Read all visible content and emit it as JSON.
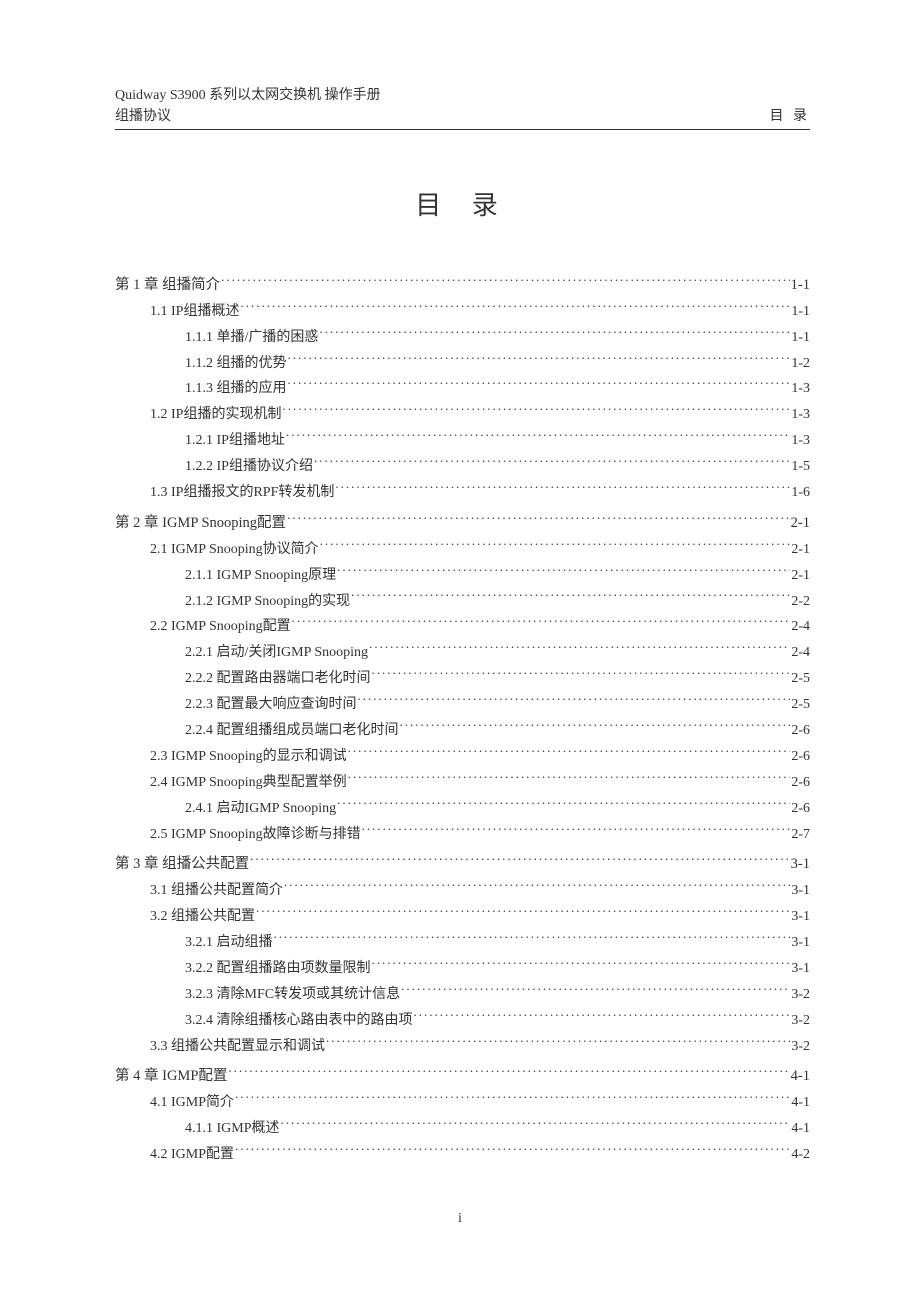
{
  "header": {
    "line1": "Quidway S3900 系列以太网交换机  操作手册",
    "line2": "组播协议",
    "right": "目 录"
  },
  "title": "目 录",
  "page_number": "i",
  "toc": [
    {
      "level": 0,
      "label": "第 1 章 组播简介",
      "page": "1-1"
    },
    {
      "level": 1,
      "label": "1.1 IP组播概述",
      "page": "1-1"
    },
    {
      "level": 2,
      "label": "1.1.1 单播/广播的困惑",
      "page": "1-1"
    },
    {
      "level": 2,
      "label": "1.1.2 组播的优势",
      "page": "1-2"
    },
    {
      "level": 2,
      "label": "1.1.3 组播的应用",
      "page": "1-3"
    },
    {
      "level": 1,
      "label": "1.2 IP组播的实现机制",
      "page": "1-3"
    },
    {
      "level": 2,
      "label": "1.2.1 IP组播地址",
      "page": "1-3"
    },
    {
      "level": 2,
      "label": "1.2.2 IP组播协议介绍",
      "page": "1-5"
    },
    {
      "level": 1,
      "label": "1.3 IP组播报文的RPF转发机制",
      "page": "1-6"
    },
    {
      "level": 0,
      "label": "第 2 章 IGMP Snooping配置",
      "page": "2-1"
    },
    {
      "level": 1,
      "label": "2.1 IGMP Snooping协议简介",
      "page": "2-1"
    },
    {
      "level": 2,
      "label": "2.1.1 IGMP Snooping原理",
      "page": "2-1"
    },
    {
      "level": 2,
      "label": "2.1.2 IGMP Snooping的实现",
      "page": "2-2"
    },
    {
      "level": 1,
      "label": "2.2 IGMP Snooping配置",
      "page": "2-4"
    },
    {
      "level": 2,
      "label": "2.2.1 启动/关闭IGMP Snooping",
      "page": "2-4"
    },
    {
      "level": 2,
      "label": "2.2.2 配置路由器端口老化时间",
      "page": "2-5"
    },
    {
      "level": 2,
      "label": "2.2.3 配置最大响应查询时间",
      "page": "2-5"
    },
    {
      "level": 2,
      "label": "2.2.4 配置组播组成员端口老化时间",
      "page": "2-6"
    },
    {
      "level": 1,
      "label": "2.3 IGMP Snooping的显示和调试",
      "page": "2-6"
    },
    {
      "level": 1,
      "label": "2.4 IGMP Snooping典型配置举例",
      "page": "2-6"
    },
    {
      "level": 2,
      "label": "2.4.1 启动IGMP Snooping",
      "page": "2-6"
    },
    {
      "level": 1,
      "label": "2.5 IGMP Snooping故障诊断与排错",
      "page": "2-7"
    },
    {
      "level": 0,
      "label": "第 3 章 组播公共配置",
      "page": "3-1"
    },
    {
      "level": 1,
      "label": "3.1 组播公共配置简介",
      "page": "3-1"
    },
    {
      "level": 1,
      "label": "3.2 组播公共配置",
      "page": "3-1"
    },
    {
      "level": 2,
      "label": "3.2.1 启动组播",
      "page": "3-1"
    },
    {
      "level": 2,
      "label": "3.2.2 配置组播路由项数量限制",
      "page": "3-1"
    },
    {
      "level": 2,
      "label": "3.2.3 清除MFC转发项或其统计信息",
      "page": "3-2"
    },
    {
      "level": 2,
      "label": "3.2.4 清除组播核心路由表中的路由项",
      "page": "3-2"
    },
    {
      "level": 1,
      "label": "3.3 组播公共配置显示和调试",
      "page": "3-2"
    },
    {
      "level": 0,
      "label": "第 4 章 IGMP配置",
      "page": "4-1"
    },
    {
      "level": 1,
      "label": "4.1 IGMP简介",
      "page": "4-1"
    },
    {
      "level": 2,
      "label": "4.1.1 IGMP概述",
      "page": "4-1"
    },
    {
      "level": 1,
      "label": "4.2 IGMP配置",
      "page": "4-2"
    }
  ]
}
